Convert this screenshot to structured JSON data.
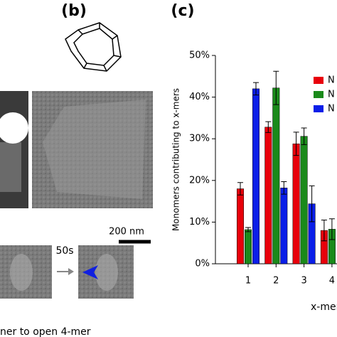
{
  "panel_labels": [
    "(b)",
    "(c)"
  ],
  "scale_bar": "200 nm",
  "time_label": "50s",
  "caption_fragment": "ner to open 4-mer",
  "chart_data": {
    "type": "bar",
    "y_label": "Monomers contributing to x-mers",
    "x_label": "x-mer",
    "categories": [
      "1",
      "2",
      "3",
      "4"
    ],
    "series": [
      {
        "name": "N",
        "color": "#e8000b",
        "values": [
          18,
          32.8,
          28.8,
          8
        ],
        "errors": [
          1.5,
          1.3,
          2.8,
          2.5
        ]
      },
      {
        "name": "N",
        "color": "#1a8a1a",
        "values": [
          8.2,
          42.2,
          30.6,
          8.3
        ],
        "errors": [
          0.5,
          4,
          2,
          2.5
        ]
      },
      {
        "name": "N",
        "color": "#0a1ee8",
        "values": [
          42,
          18.2,
          14.4,
          null
        ],
        "errors": [
          1.5,
          1.5,
          4.3,
          null
        ]
      }
    ],
    "ylim": [
      0,
      50
    ],
    "yticks": [
      {
        "value": 0,
        "label": "0%"
      },
      {
        "value": 10,
        "label": "10%"
      },
      {
        "value": 20,
        "label": "20%"
      },
      {
        "value": 30,
        "label": "30%"
      },
      {
        "value": 40,
        "label": "40%"
      },
      {
        "value": 50,
        "label": "50%"
      }
    ]
  }
}
